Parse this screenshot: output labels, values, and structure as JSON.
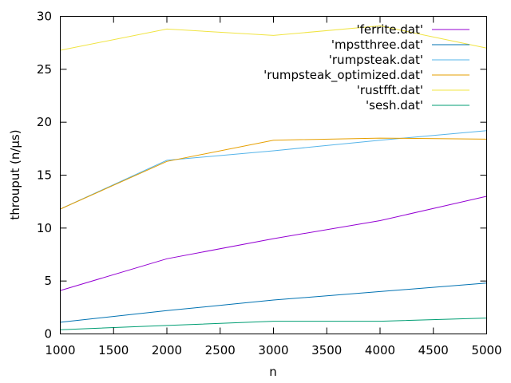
{
  "chart_data": {
    "type": "line",
    "xlabel": "n",
    "ylabel": "throuput (n/µs)",
    "xlim": [
      1000,
      5000
    ],
    "ylim": [
      0,
      30
    ],
    "xticks": [
      "1000",
      "1500",
      "2000",
      "2500",
      "3000",
      "3500",
      "4000",
      "4500",
      "5000"
    ],
    "yticks": [
      "0",
      "5",
      "10",
      "15",
      "20",
      "25",
      "30"
    ],
    "grid": false,
    "legend_position": "top-right",
    "x": [
      1000,
      2000,
      3000,
      4000,
      5000
    ],
    "series": [
      {
        "name": "'ferrite.dat'",
        "color": "#9400d3",
        "values": [
          4.1,
          7.1,
          9.0,
          10.7,
          13.0
        ]
      },
      {
        "name": "'mpstthree.dat'",
        "color": "#0072b2",
        "values": [
          1.1,
          2.2,
          3.2,
          4.0,
          4.8
        ]
      },
      {
        "name": "'rumpsteak.dat'",
        "color": "#56b4e9",
        "values": [
          11.8,
          16.4,
          17.3,
          18.3,
          19.2
        ]
      },
      {
        "name": "'rumpsteak_optimized.dat'",
        "color": "#e69f00",
        "values": [
          11.8,
          16.3,
          18.3,
          18.5,
          18.4
        ]
      },
      {
        "name": "'rustfft.dat'",
        "color": "#f0e442",
        "values": [
          26.8,
          28.8,
          28.2,
          29.1,
          27.0
        ]
      },
      {
        "name": "'sesh.dat'",
        "color": "#009e73",
        "values": [
          0.4,
          0.8,
          1.2,
          1.2,
          1.5
        ]
      }
    ]
  }
}
